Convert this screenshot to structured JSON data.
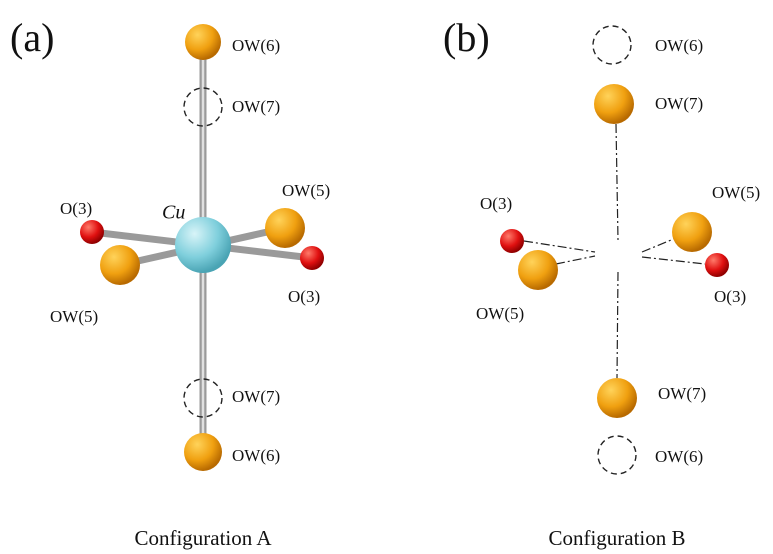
{
  "panels": [
    {
      "tag": "(a)",
      "center": "Cu",
      "caption": "Configuration A",
      "labels": [
        "OW(6)",
        "OW(7)",
        "OW(5)",
        "O(3)",
        "O(3)",
        "OW(5)",
        "OW(7)",
        "OW(6)"
      ]
    },
    {
      "tag": "(b)",
      "caption": "Configuration B",
      "labels": [
        "OW(6)",
        "OW(7)",
        "O(3)",
        "OW(5)",
        "OW(5)",
        "O(3)",
        "OW(7)",
        "OW(6)"
      ]
    }
  ]
}
